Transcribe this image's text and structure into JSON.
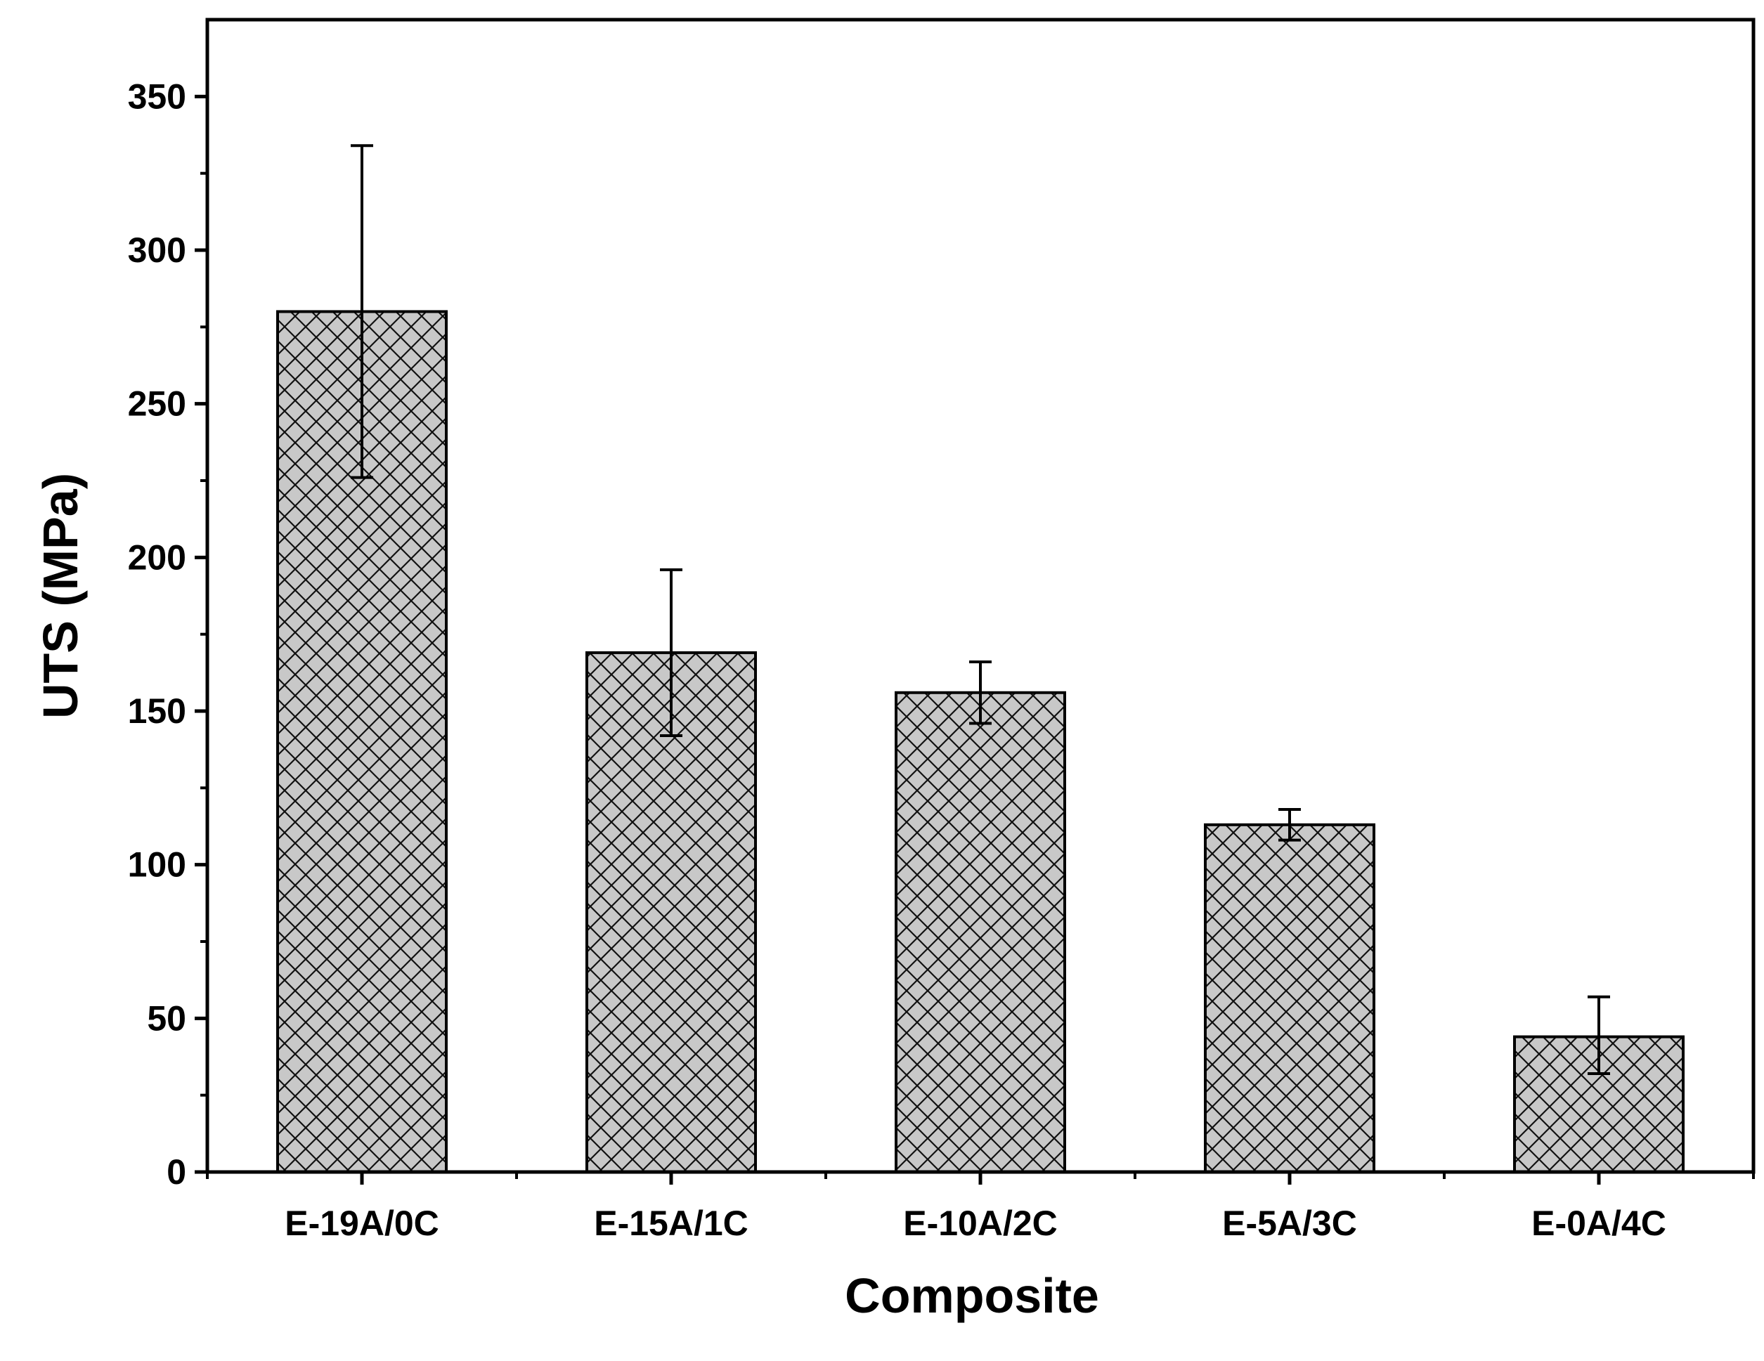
{
  "chart_data": {
    "type": "bar",
    "title": "",
    "xlabel": "Composite",
    "ylabel": "UTS (MPa)",
    "categories": [
      "E-19A/0C",
      "E-15A/1C",
      "E-10A/2C",
      "E-5A/3C",
      "E-0A/4C"
    ],
    "values": [
      280,
      169,
      156,
      113,
      44
    ],
    "error_upper": [
      334,
      196,
      166,
      118,
      57
    ],
    "error_lower": [
      226,
      142,
      146,
      108,
      32
    ],
    "ylim": [
      0,
      375
    ],
    "yticks": [
      "0",
      "50",
      "100",
      "150",
      "200",
      "250",
      "300",
      "350"
    ],
    "ytick_values": [
      0,
      50,
      100,
      150,
      200,
      250,
      300,
      350
    ],
    "minor_tick_step": 25,
    "grid": false,
    "bar_fill": "#c8c8c8",
    "bar_pattern": "crosshatch",
    "line_color": "#000000"
  }
}
